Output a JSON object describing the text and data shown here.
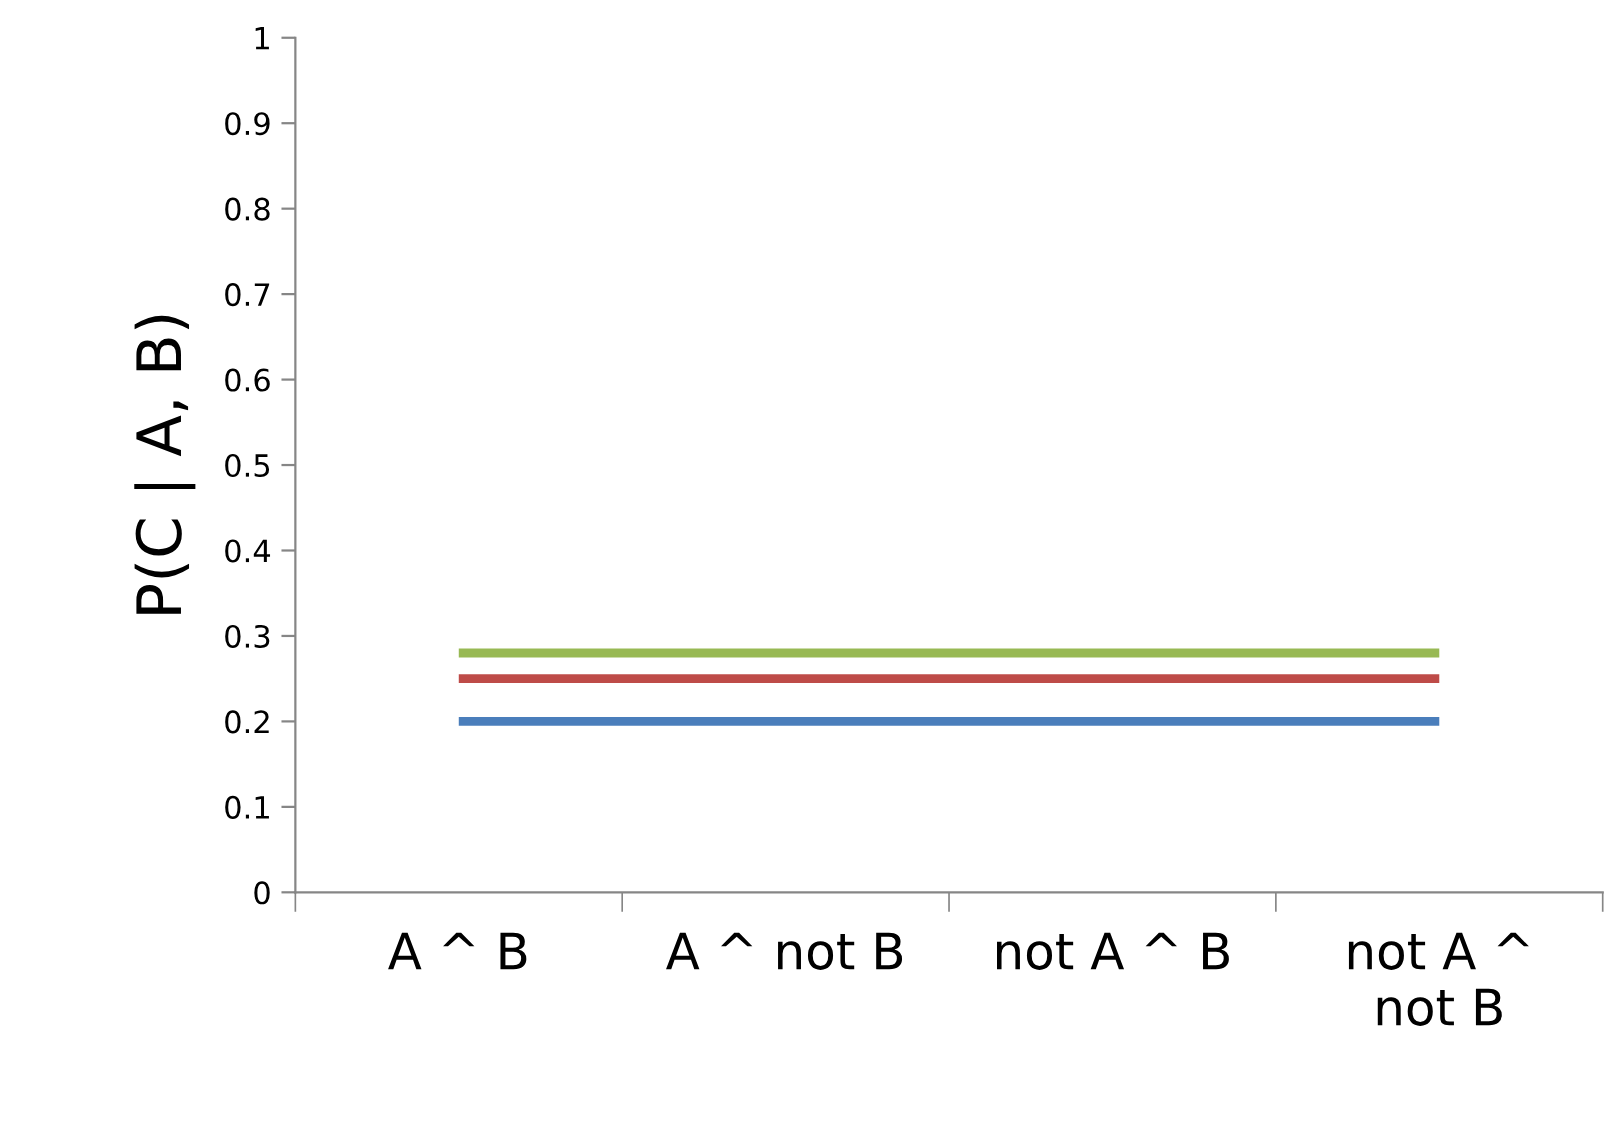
{
  "chart_data": {
    "type": "line",
    "ylabel": "P(C | A, B)",
    "categories": [
      "A ^ B",
      "A ^ not B",
      "not A ^ B",
      "not A ^\nnot B"
    ],
    "series": [
      {
        "color": "#4a7ebb",
        "values": [
          0.2,
          0.2,
          0.2,
          0.2
        ]
      },
      {
        "color": "#be4b48",
        "values": [
          0.25,
          0.25,
          0.25,
          0.25
        ]
      },
      {
        "color": "#98b954",
        "values": [
          0.28,
          0.28,
          0.28,
          0.28
        ]
      }
    ],
    "ylim": [
      0,
      1
    ],
    "yticks": [
      0,
      0.1,
      0.2,
      0.3,
      0.4,
      0.5,
      0.6,
      0.7,
      0.8,
      0.9,
      1
    ],
    "grid": false,
    "marker": "none",
    "line_style": "solid"
  }
}
